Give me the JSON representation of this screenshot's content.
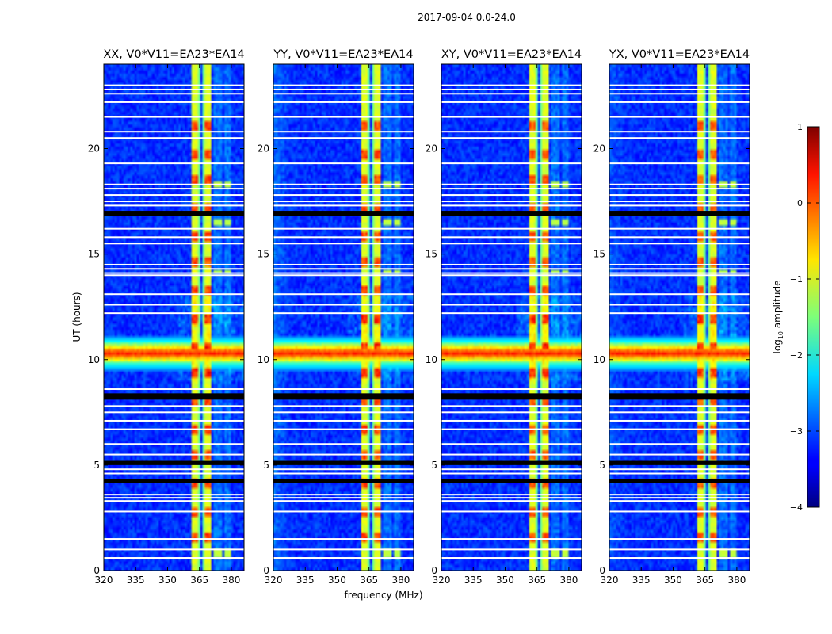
{
  "chart_data": {
    "type": "heatmap",
    "suptitle": "2017-09-04 0.0-24.0",
    "xlabel": "frequency (MHz)",
    "ylabel": "UT (hours)",
    "xlim": [
      320,
      386
    ],
    "ylim": [
      0,
      24
    ],
    "x_ticks": [
      320,
      335,
      350,
      365,
      380
    ],
    "y_ticks": [
      0,
      5,
      10,
      15,
      20
    ],
    "panels": [
      {
        "title": "XX, V0*V11=EA23*EA14",
        "rfi_strength": 1.0,
        "edge_tilt": 0.0
      },
      {
        "title": "YY, V0*V11=EA23*EA14",
        "rfi_strength": 1.0,
        "edge_tilt": 0.25
      },
      {
        "title": "XY, V0*V11=EA23*EA14",
        "rfi_strength": 0.8,
        "edge_tilt": -0.2
      },
      {
        "title": "YX, V0*V11=EA23*EA14",
        "rfi_strength": 0.8,
        "edge_tilt": 0.15
      }
    ],
    "interference_bands_mhz": [
      {
        "start": 361,
        "end": 365
      },
      {
        "start": 366.5,
        "end": 371
      }
    ],
    "secondary_bands_mhz": [
      {
        "start": 372,
        "end": 375.5
      },
      {
        "start": 377,
        "end": 380
      }
    ],
    "broadband_event": {
      "center_ut": 10.3,
      "half_width_hours": 0.45
    },
    "flagged_blocks_ut": [
      [
        8.1,
        8.4
      ],
      [
        16.8,
        17.05
      ],
      [
        5.0,
        5.2
      ],
      [
        4.15,
        4.35
      ]
    ],
    "gap_lines_ut": [
      0.6,
      1.0,
      1.5,
      2.8,
      3.3,
      3.45,
      3.6,
      4.6,
      4.8,
      5.5,
      6.0,
      6.7,
      7.1,
      7.5,
      7.8,
      8.6,
      12.2,
      12.6,
      13.1,
      14.0,
      14.1,
      14.3,
      14.5,
      15.5,
      15.8,
      16.2,
      17.3,
      17.5,
      17.8,
      18.1,
      18.3,
      19.3,
      20.5,
      20.8,
      21.5,
      22.2,
      22.6,
      22.8,
      23.0
    ],
    "colorbar": {
      "label": "log10 amplitude",
      "label_main": "log",
      "label_sub": "10",
      "label_rest": " amplitude",
      "min": -4,
      "max": 1,
      "ticks": [
        1,
        0,
        -1,
        -2,
        -3,
        -4
      ],
      "tick_labels": [
        "1",
        "0",
        "−1",
        "−2",
        "−3",
        "−4"
      ],
      "colormap": "jet"
    }
  }
}
